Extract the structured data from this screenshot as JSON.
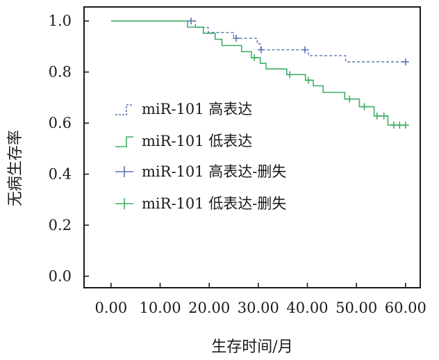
{
  "chart_data": {
    "type": "kaplan-meier",
    "title": "",
    "xlabel": "生存时间/月",
    "ylabel": "无病生存率",
    "xlim": [
      -5.5,
      63.0
    ],
    "ylim": [
      -0.045,
      1.055
    ],
    "xticks": [
      0,
      10,
      20,
      30,
      40,
      50,
      60
    ],
    "xtick_labels": [
      "0.00",
      "10.00",
      "20.00",
      "30.00",
      "40.00",
      "50.00",
      "60.00"
    ],
    "yticks": [
      0.0,
      0.2,
      0.4,
      0.6,
      0.8,
      1.0
    ],
    "ytick_labels": [
      "0.0",
      "0.2",
      "0.4",
      "0.6",
      "0.8",
      "1.0"
    ],
    "grid": false,
    "legend_position": "center-left",
    "series": [
      {
        "name": "miR-101 高表达",
        "color": "#5a72b4",
        "style": "dashed",
        "steps": [
          [
            0,
            1.0
          ],
          [
            17.2,
            1.0
          ],
          [
            17.2,
            0.975
          ],
          [
            19.8,
            0.975
          ],
          [
            19.8,
            0.955
          ],
          [
            25.0,
            0.955
          ],
          [
            25.0,
            0.932
          ],
          [
            29.8,
            0.932
          ],
          [
            29.8,
            0.91
          ],
          [
            30.5,
            0.91
          ],
          [
            30.5,
            0.887
          ],
          [
            40.2,
            0.887
          ],
          [
            40.2,
            0.864
          ],
          [
            47.8,
            0.864
          ],
          [
            47.8,
            0.84
          ],
          [
            60.0,
            0.84
          ]
        ],
        "censor_x": [
          16.3,
          25.5,
          30.6,
          39.5,
          60.0
        ],
        "censor_y": [
          1.0,
          0.932,
          0.887,
          0.887,
          0.84
        ]
      },
      {
        "name": "miR-101 低表达",
        "color": "#3fae62",
        "style": "solid",
        "steps": [
          [
            0,
            1.0
          ],
          [
            15.6,
            1.0
          ],
          [
            15.6,
            0.976
          ],
          [
            18.8,
            0.976
          ],
          [
            18.8,
            0.952
          ],
          [
            21.2,
            0.952
          ],
          [
            21.2,
            0.928
          ],
          [
            22.6,
            0.928
          ],
          [
            22.6,
            0.904
          ],
          [
            26.6,
            0.904
          ],
          [
            26.6,
            0.88
          ],
          [
            28.6,
            0.88
          ],
          [
            28.6,
            0.856
          ],
          [
            30.4,
            0.856
          ],
          [
            30.4,
            0.834
          ],
          [
            31.6,
            0.834
          ],
          [
            31.6,
            0.812
          ],
          [
            35.8,
            0.812
          ],
          [
            35.8,
            0.79
          ],
          [
            39.6,
            0.79
          ],
          [
            39.6,
            0.768
          ],
          [
            41.2,
            0.768
          ],
          [
            41.2,
            0.746
          ],
          [
            43.2,
            0.746
          ],
          [
            43.2,
            0.72
          ],
          [
            47.6,
            0.72
          ],
          [
            47.6,
            0.694
          ],
          [
            50.6,
            0.694
          ],
          [
            50.6,
            0.664
          ],
          [
            53.6,
            0.664
          ],
          [
            53.6,
            0.628
          ],
          [
            56.4,
            0.628
          ],
          [
            56.4,
            0.592
          ],
          [
            60.0,
            0.592
          ]
        ],
        "censor_x": [
          29.2,
          36.4,
          40.2,
          48.6,
          51.6,
          54.2,
          55.6,
          57.6,
          58.8,
          60.0
        ],
        "censor_y": [
          0.856,
          0.79,
          0.768,
          0.694,
          0.664,
          0.628,
          0.628,
          0.592,
          0.592,
          0.592
        ]
      }
    ],
    "legend": [
      {
        "label": "miR-101 高表达",
        "kind": "line",
        "series": 0
      },
      {
        "label": "miR-101 低表达",
        "kind": "line",
        "series": 1
      },
      {
        "label": "miR-101 高表达-删失",
        "kind": "censor",
        "series": 0
      },
      {
        "label": "miR-101 低表达-删失",
        "kind": "censor",
        "series": 1
      }
    ]
  }
}
